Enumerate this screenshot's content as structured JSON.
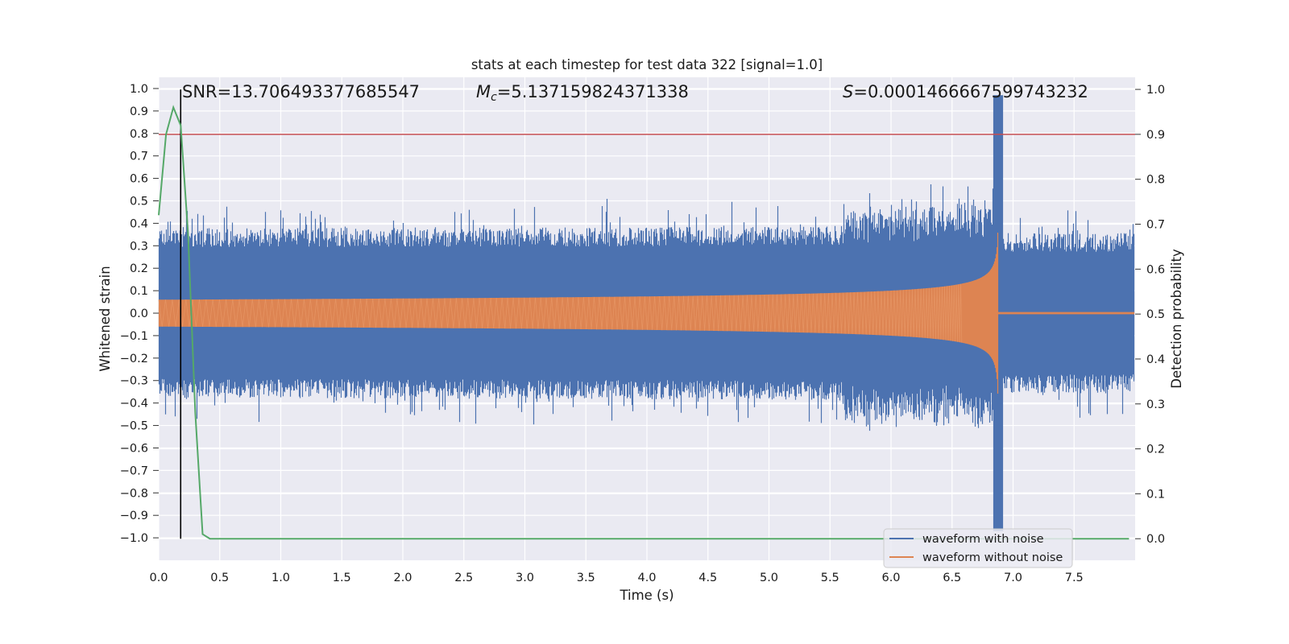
{
  "chart_data": {
    "type": "line",
    "title": "stats at each timestep for test data 322 [signal=1.0]",
    "xlabel": "Time (s)",
    "ylabel_left": "Whitened strain",
    "ylabel_right": "Detection probability",
    "xlim": [
      0.0,
      8.0
    ],
    "ylim_left": [
      -1.1,
      1.05
    ],
    "ylim_right": [
      -0.048,
      1.027
    ],
    "x_ticks": [
      "0.0",
      "0.5",
      "1.0",
      "1.5",
      "2.0",
      "2.5",
      "3.0",
      "3.5",
      "4.0",
      "4.5",
      "5.0",
      "5.5",
      "6.0",
      "6.5",
      "7.0",
      "7.5"
    ],
    "y_left_ticks": [
      "1.0",
      "0.9",
      "0.8",
      "0.7",
      "0.6",
      "0.5",
      "0.4",
      "0.3",
      "0.2",
      "0.1",
      "0.0",
      "−0.1",
      "−0.2",
      "−0.3",
      "−0.4",
      "−0.5",
      "−0.6",
      "−0.7",
      "−0.8",
      "−0.9",
      "−1.0"
    ],
    "y_right_ticks": [
      "1.0",
      "0.9",
      "0.8",
      "0.7",
      "0.6",
      "0.5",
      "0.4",
      "0.3",
      "0.2",
      "0.1",
      "0.0"
    ],
    "annotations": {
      "snr": "SNR=13.706493377685547",
      "mc_symbol": "M",
      "mc_sub": "c",
      "mc_value": "=5.137159824371338",
      "s_symbol": "S",
      "s_value": "=0.0001466667599743232"
    },
    "threshold": {
      "value": 0.9,
      "axis": "right",
      "color": "#c44e52"
    },
    "detection_marker_time": 0.18,
    "series": [
      {
        "name": "waveform with noise",
        "color": "#4c72b0",
        "axis": "left",
        "noise_amplitude": 0.34,
        "noise_spike_max": 0.45,
        "merger_time": 6.88,
        "peak_abs": 0.97
      },
      {
        "name": "waveform without noise",
        "color": "#dd8452",
        "axis": "left",
        "start_amplitude": 0.06,
        "merger_time": 6.88,
        "peak_amplitude": 0.93,
        "post_merger": 0.005
      },
      {
        "name": "detection probability",
        "color": "#55a868",
        "axis": "right",
        "x": [
          0.0,
          0.06,
          0.12,
          0.18,
          0.24,
          0.3,
          0.36,
          0.42,
          7.95
        ],
        "y": [
          0.72,
          0.9,
          0.96,
          0.92,
          0.68,
          0.28,
          0.01,
          0.0,
          0.0
        ]
      }
    ],
    "legend": {
      "position": "lower-right",
      "entries": [
        "waveform with noise",
        "waveform without noise"
      ]
    }
  }
}
